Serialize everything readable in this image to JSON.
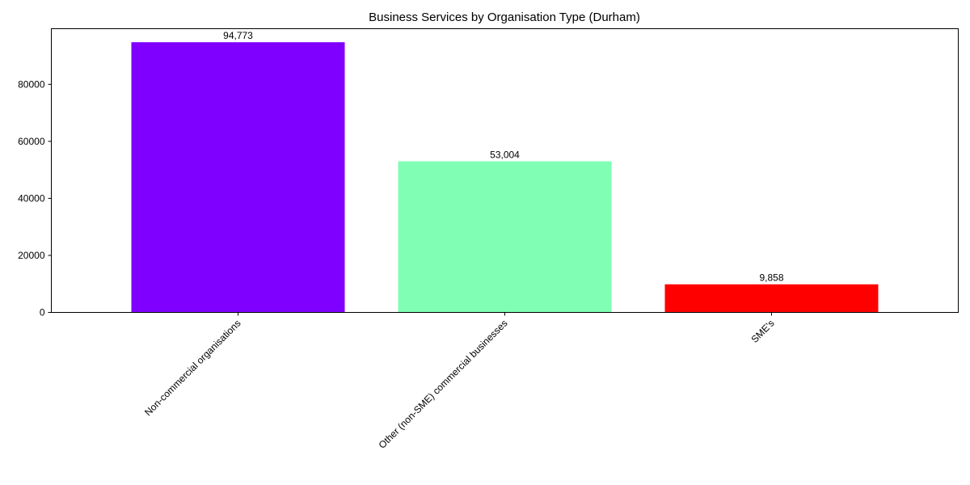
{
  "chart_data": {
    "type": "bar",
    "title": "Business Services by Organisation Type (Durham)",
    "xlabel": "",
    "ylabel": "",
    "categories": [
      "Non-commercial organisations",
      "Other (non-SME) commercial businesses",
      "SME's"
    ],
    "values": [
      94773,
      53004,
      9858
    ],
    "value_labels": [
      "94,773",
      "53,004",
      "9,858"
    ],
    "colors": [
      "#8000ff",
      "#80ffb4",
      "#ff0000"
    ],
    "ylim": [
      0,
      99512
    ],
    "yticks": [
      0,
      20000,
      40000,
      60000,
      80000
    ],
    "ytick_labels": [
      "0",
      "20000",
      "40000",
      "60000",
      "80000"
    ],
    "grid": false,
    "legend": "none"
  }
}
